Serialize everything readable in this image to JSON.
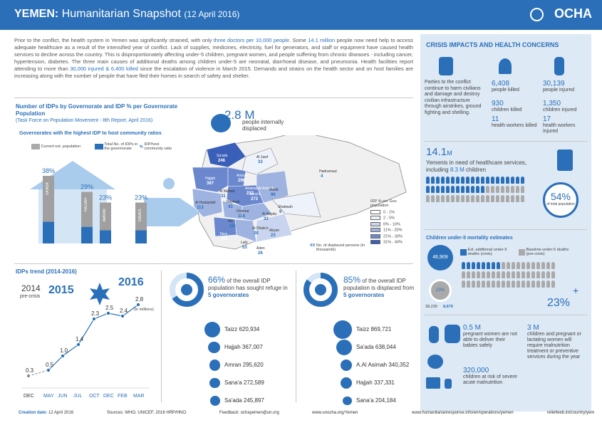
{
  "header": {
    "country": "YEMEN:",
    "title": "Humanitarian Snapshot",
    "date": "(12 April 2016)",
    "logo": "OCHA"
  },
  "intro": {
    "p1": "Prior to the conflict, the health system in Yemen was significantly strained, with only ",
    "h1": "three doctors per 10,000 people",
    "p2": ". Some ",
    "h2": "14.1 million",
    "p3": " people now need help to access adequate healthcare as a result of the intensified year of conflict. Lack of supplies, medicines, electricity, fuel for generators, and staff or equipment have caused health services to decline across the country. This is disproportionately affecting under-5 children, pregnant women, and people suffering from chronic diseases - including cancer, hypertension, diabetes. The three main causes of additional deaths among children under-5 are neonatal, diarrhoeal disease, and pneumonia. Health facilities report attending to more than ",
    "h3": "30,000 injured & 6,400 killed",
    "p4": " since the escalation of violence in March 2015. Demands and strains on the health sector and on host families are increasing along with the number of people that have fled their homes in search of safety and shelter."
  },
  "idp_map": {
    "title": "Number of IDPs by Governorate and IDP % per Governorate Population",
    "subtitle": "(Task Force on Population Movement - 8th Report, April 2016)",
    "total": "2.8 M",
    "total_label": "people internally displaced",
    "legend_title": "IDP % per Gov. population",
    "legend": [
      {
        "label": "0 - 1%",
        "color": "#ffffff"
      },
      {
        "label": "2 - 5%",
        "color": "#eef2fa"
      },
      {
        "label": "6% - 10%",
        "color": "#c9d5ef"
      },
      {
        "label": "11% - 20%",
        "color": "#9fb3e1"
      },
      {
        "label": "21% - 30%",
        "color": "#6b88cf"
      },
      {
        "label": "31% - 40%",
        "color": "#3a5fb8"
      }
    ],
    "legend_note_num": "XX",
    "legend_note": "No. of displaced persons (in thousands)",
    "governorates": [
      {
        "name": "Sa'ada",
        "value": "246"
      },
      {
        "name": "Al Jawf",
        "value": "33"
      },
      {
        "name": "Hadramaut",
        "value": "4"
      },
      {
        "name": "Amran",
        "value": "296"
      },
      {
        "name": "Hajjah",
        "value": "367"
      },
      {
        "name": "Amanat Al Asimah",
        "value": "212"
      },
      {
        "name": "Al Mahwit",
        "value": "31"
      },
      {
        "name": "Sana'a",
        "value": "273"
      },
      {
        "name": "Marib",
        "value": "96"
      },
      {
        "name": "Al Hudaydah",
        "value": "113"
      },
      {
        "name": "Raymah",
        "value": "43"
      },
      {
        "name": "Dhamar",
        "value": "118"
      },
      {
        "name": "Shabwah",
        "value": "9"
      },
      {
        "name": "Ibb",
        "value": "111"
      },
      {
        "name": "Al Bayda",
        "value": "33"
      },
      {
        "name": "Al Dhale'e",
        "value": "28"
      },
      {
        "name": "Abyan",
        "value": "23"
      },
      {
        "name": "Taizz",
        "value": "621"
      },
      {
        "name": "Lahj",
        "value": "53"
      },
      {
        "name": "Aden",
        "value": "26"
      }
    ]
  },
  "host_ratio": {
    "title": "Governorates with the highest IDP to host community ratios",
    "legend": [
      "Current est. population",
      "Total No. of IDPs in the governorate",
      "IDP/host community ratio"
    ],
    "legend_symbol": "%"
  },
  "chart_data": [
    {
      "type": "bar",
      "title": "Governorates with the highest IDP to host community ratios",
      "categories": [
        "SA'ADA",
        "HAJJAH",
        "AMRAN",
        "SANA'A"
      ],
      "series": [
        {
          "name": "IDP/host community ratio",
          "values": [
            38,
            29,
            23,
            23
          ]
        }
      ],
      "labels": [
        "38%",
        "29%",
        "23%",
        "23%"
      ],
      "ylim": [
        0,
        40
      ]
    },
    {
      "type": "line",
      "title": "IDPs trend (2014-2016)",
      "x": [
        "DEC",
        "MAY",
        "JUN",
        "JUL",
        "OCT",
        "DEC",
        "FEB",
        "MAR"
      ],
      "series": [
        {
          "name": "",
          "values": [
            0.3,
            0.5,
            1.0,
            1.4,
            2.3,
            2.5,
            2.4,
            2.8
          ]
        }
      ],
      "unit": "(in millions)",
      "year_labels": [
        "2014",
        "2015",
        "2016"
      ],
      "ylim": [
        0,
        3
      ]
    },
    {
      "type": "scatter",
      "title": "66% of the overall IDP population has sought refuge in 5 governorates",
      "categories": [
        "Taizz",
        "Hajjah",
        "Amran",
        "Sana'a",
        "Sa'ada"
      ],
      "values": [
        620934,
        367007,
        295620,
        272589,
        245897
      ],
      "labels": [
        "620,934",
        "367,007",
        "295,620",
        "272,589",
        "245,897"
      ]
    },
    {
      "type": "scatter",
      "title": "85% of the overall IDP population is displaced from 5 governorates",
      "categories": [
        "Taizz",
        "Sa'ada",
        "A.Al Asimah",
        "Hajjah",
        "Sana'a"
      ],
      "values": [
        869721,
        638044,
        340352,
        337331,
        204184
      ],
      "labels": [
        "869,721",
        "638,044",
        "340,352",
        "337,331",
        "204,184"
      ]
    }
  ],
  "trend": {
    "title": "IDPs trend (2014-2016)",
    "y2014": "2014",
    "pre_crisis": "pre-crisis",
    "y2015": "2015",
    "y2016": "2016",
    "unit": "(in millions)"
  },
  "donut1": {
    "pct": "66%",
    "text1": " of the overall IDP population has sought refuge in ",
    "bold": "5 governorates"
  },
  "donut2": {
    "pct": "85%",
    "text1": " of the overall IDP population is displaced from ",
    "bold": "5 governorates"
  },
  "crisis": {
    "title": "CRISIS IMPACTS AND HEALTH CONCERNS",
    "parties_text": "Parties to the conflict continue to harm civilians and damage and destroy civilian infrastructure through airstrikes, ground fighting and shelling.",
    "killed_num": "6,408",
    "killed_label": "people killed",
    "injured_num": "30,139",
    "injured_label": "people injured",
    "children_killed_num": "930",
    "children_killed_label": "children killed",
    "children_injured_num": "1,350",
    "children_injured_label": "children injured",
    "hw_killed_num": "11",
    "hw_killed_label": "health workers killed",
    "hw_injured_num": "17",
    "hw_injured_label": "health workers injured"
  },
  "healthcare": {
    "num": "14.1",
    "unit": "M",
    "text": "Yemenis in need of healthcare services, including ",
    "children": "8.3 M",
    "children_suffix": " children",
    "pct": "54%",
    "pct_label": "of total population"
  },
  "mortality": {
    "title": "Children under-5 mortality estimates",
    "legend1": "Est. additional under-5 deaths (crisis)",
    "legend2": "Baseline under-5 deaths (pre-crisis)",
    "num1": "46,909",
    "circle_pct": "23%",
    "num2": "38,230",
    "num3": "8,679",
    "plus": "+",
    "big_pct": "23%"
  },
  "maternal": {
    "num1": "0.5 M",
    "label1": "pregnant women are not able to deliver their babies safely",
    "num2": "3 M",
    "label2": "children and pregnant or lactating women will require malnutrition treatment or preventive services during the year",
    "num3": "320,000",
    "label3": "children at risk of severe acute malnutrition"
  },
  "footer": {
    "created": "Creation date: 12 April 2016",
    "sources": "Sources: WHO, UNICEF, 2016 HRP/HNO.",
    "feedback": "Feedback: ochayemen@un.org",
    "url1": "www.unocha.org/Yemen",
    "url2": "www.humanitarianresponse.info/en/operations/yemen",
    "url3": "reliefweb.int/country/yem"
  }
}
